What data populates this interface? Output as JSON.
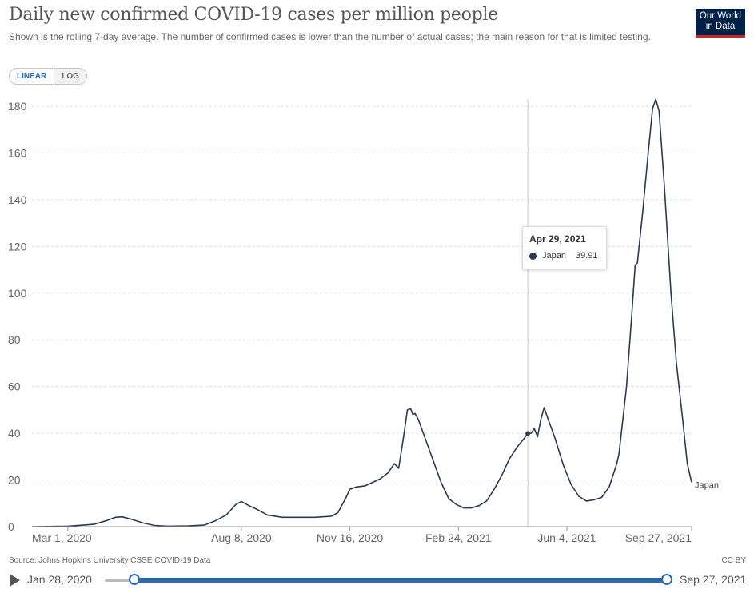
{
  "header": {
    "title": "Daily new confirmed COVID-19 cases per million people",
    "subtitle": "Shown is the rolling 7-day average. The number of confirmed cases is lower than the number of actual cases; the main reason for that is limited testing.",
    "logo_line1": "Our World",
    "logo_line2": "in Data"
  },
  "controls": {
    "linear_label": "LINEAR",
    "log_label": "LOG",
    "selected": "LINEAR"
  },
  "tooltip": {
    "date": "Apr 29, 2021",
    "series": "Japan",
    "value": "39.91"
  },
  "footer": {
    "source": "Source: Johns Hopkins University CSSE COVID-19 Data",
    "license": "CC BY"
  },
  "timeline": {
    "start_label": "Jan 28, 2020",
    "end_label": "Sep 27, 2021"
  },
  "colors": {
    "series_line": "#2b3a52",
    "accent": "#2a6ab1",
    "grid": "#dddddd"
  },
  "chart_data": {
    "type": "line",
    "title": "Daily new confirmed COVID-19 cases per million people",
    "xlabel": "",
    "ylabel": "",
    "x_range": [
      "2020-01-28",
      "2021-09-27"
    ],
    "ylim": [
      0,
      180
    ],
    "y_ticks": [
      0,
      20,
      40,
      60,
      80,
      100,
      120,
      140,
      160,
      180
    ],
    "x_ticks": [
      {
        "date": "2020-03-01",
        "label": "Mar 1, 2020"
      },
      {
        "date": "2020-08-08",
        "label": "Aug 8, 2020"
      },
      {
        "date": "2020-11-16",
        "label": "Nov 16, 2020"
      },
      {
        "date": "2021-02-24",
        "label": "Feb 24, 2021"
      },
      {
        "date": "2021-06-04",
        "label": "Jun 4, 2021"
      },
      {
        "date": "2021-09-27",
        "label": "Sep 27, 2021"
      }
    ],
    "grid": true,
    "hover_date": "2021-04-29",
    "series": [
      {
        "name": "Japan",
        "end_label": "Japan",
        "points": [
          [
            "2020-01-28",
            0
          ],
          [
            "2020-03-01",
            0.2
          ],
          [
            "2020-03-25",
            1.0
          ],
          [
            "2020-04-05",
            2.5
          ],
          [
            "2020-04-14",
            4.0
          ],
          [
            "2020-04-20",
            4.2
          ],
          [
            "2020-04-30",
            3.0
          ],
          [
            "2020-05-10",
            1.5
          ],
          [
            "2020-05-20",
            0.5
          ],
          [
            "2020-06-01",
            0.2
          ],
          [
            "2020-06-20",
            0.3
          ],
          [
            "2020-07-05",
            0.7
          ],
          [
            "2020-07-15",
            2.5
          ],
          [
            "2020-07-25",
            5.0
          ],
          [
            "2020-08-03",
            9.5
          ],
          [
            "2020-08-08",
            10.8
          ],
          [
            "2020-08-15",
            9.0
          ],
          [
            "2020-08-22",
            7.5
          ],
          [
            "2020-09-01",
            5.0
          ],
          [
            "2020-09-15",
            4.0
          ],
          [
            "2020-09-30",
            4.0
          ],
          [
            "2020-10-15",
            4.0
          ],
          [
            "2020-10-30",
            4.5
          ],
          [
            "2020-11-05",
            6.0
          ],
          [
            "2020-11-12",
            12.0
          ],
          [
            "2020-11-16",
            16.0
          ],
          [
            "2020-11-22",
            17.0
          ],
          [
            "2020-11-30",
            17.5
          ],
          [
            "2020-12-07",
            19.0
          ],
          [
            "2020-12-14",
            20.5
          ],
          [
            "2020-12-21",
            23.0
          ],
          [
            "2020-12-27",
            27.0
          ],
          [
            "2020-12-31",
            25.0
          ],
          [
            "2021-01-05",
            40.0
          ],
          [
            "2021-01-08",
            50.0
          ],
          [
            "2021-01-11",
            50.5
          ],
          [
            "2021-01-13",
            48.0
          ],
          [
            "2021-01-15",
            48.5
          ],
          [
            "2021-01-18",
            46.0
          ],
          [
            "2021-01-25",
            37.0
          ],
          [
            "2021-02-01",
            28.0
          ],
          [
            "2021-02-08",
            19.0
          ],
          [
            "2021-02-15",
            12.0
          ],
          [
            "2021-02-22",
            9.5
          ],
          [
            "2021-03-01",
            8.0
          ],
          [
            "2021-03-08",
            8.0
          ],
          [
            "2021-03-15",
            9.0
          ],
          [
            "2021-03-22",
            11.0
          ],
          [
            "2021-03-29",
            16.0
          ],
          [
            "2021-04-05",
            22.0
          ],
          [
            "2021-04-12",
            29.0
          ],
          [
            "2021-04-19",
            34.0
          ],
          [
            "2021-04-26",
            38.0
          ],
          [
            "2021-04-29",
            39.91
          ],
          [
            "2021-05-02",
            40.0
          ],
          [
            "2021-05-05",
            42.0
          ],
          [
            "2021-05-08",
            38.5
          ],
          [
            "2021-05-11",
            46.0
          ],
          [
            "2021-05-14",
            51.0
          ],
          [
            "2021-05-17",
            47.0
          ],
          [
            "2021-05-24",
            38.0
          ],
          [
            "2021-06-01",
            26.0
          ],
          [
            "2021-06-08",
            18.0
          ],
          [
            "2021-06-15",
            13.0
          ],
          [
            "2021-06-22",
            11.0
          ],
          [
            "2021-06-29",
            11.5
          ],
          [
            "2021-07-06",
            12.5
          ],
          [
            "2021-07-13",
            17.0
          ],
          [
            "2021-07-20",
            27.0
          ],
          [
            "2021-07-22",
            31.0
          ],
          [
            "2021-07-29",
            60.0
          ],
          [
            "2021-08-03",
            92.0
          ],
          [
            "2021-08-06",
            112.0
          ],
          [
            "2021-08-08",
            113.0
          ],
          [
            "2021-08-13",
            135.0
          ],
          [
            "2021-08-18",
            160.0
          ],
          [
            "2021-08-22",
            179.0
          ],
          [
            "2021-08-25",
            183.0
          ],
          [
            "2021-08-28",
            178.0
          ],
          [
            "2021-09-02",
            145.0
          ],
          [
            "2021-09-08",
            100.0
          ],
          [
            "2021-09-13",
            70.0
          ],
          [
            "2021-09-19",
            45.0
          ],
          [
            "2021-09-23",
            27.0
          ],
          [
            "2021-09-27",
            19.0
          ]
        ]
      }
    ]
  }
}
